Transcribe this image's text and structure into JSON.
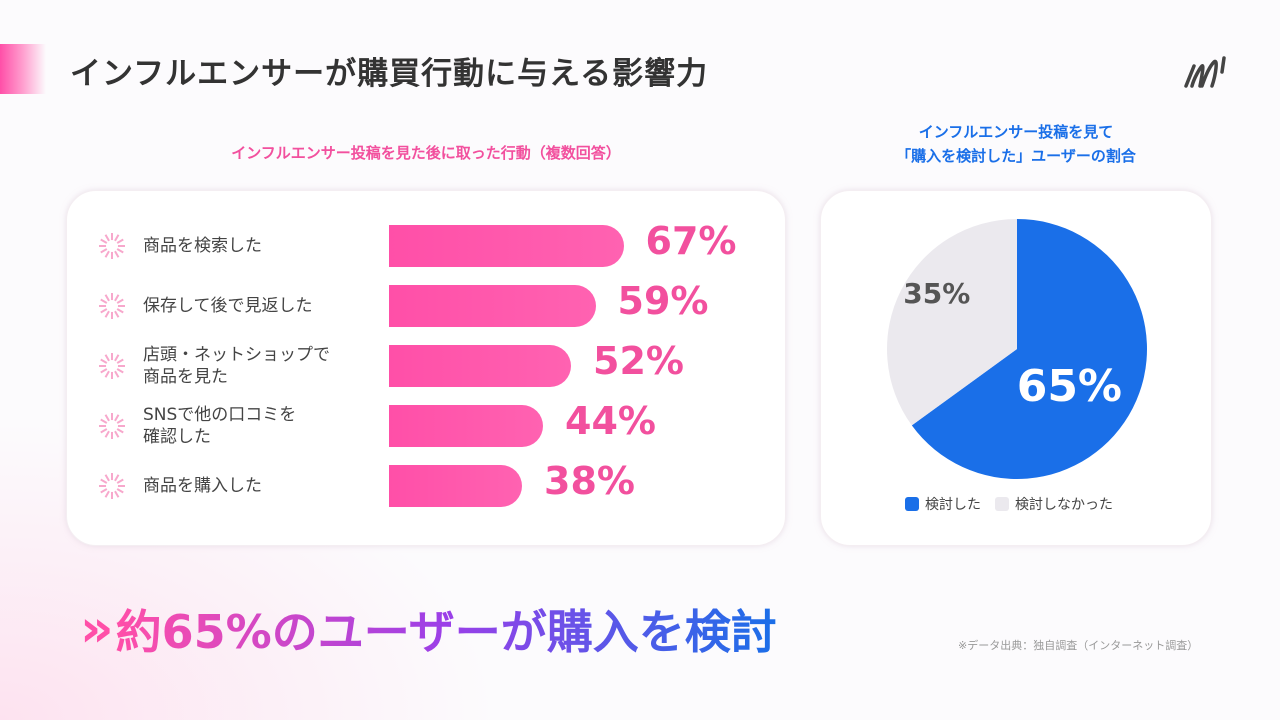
{
  "title": "インフルエンサーが購買行動に与える影響力",
  "left": {
    "subtitle": "インフルエンサー投稿を見た後に取った行動（複数回答）",
    "chart_data": {
      "type": "bar",
      "orientation": "horizontal",
      "categories": [
        "商品を検索した",
        "保存して後で見返した",
        "店頭・ネットショップで商品を見た",
        "SNSで他の口コミを確認した",
        "商品を購入した"
      ],
      "values": [
        67,
        59,
        52,
        44,
        38
      ],
      "unit": "%",
      "color": "#ff4fa8"
    },
    "labels": [
      [
        "商品を検索した"
      ],
      [
        "保存して後で見返した"
      ],
      [
        "店頭・ネットショップで",
        "商品を見た"
      ],
      [
        "SNSで他の口コミを",
        "確認した"
      ],
      [
        "商品を購入した"
      ]
    ],
    "value_labels": [
      "67%",
      "59%",
      "52%",
      "44%",
      "38%"
    ]
  },
  "right": {
    "subtitle_lines": [
      "インフルエンサー投稿を見て",
      "「購入を検討した」ユーザーの割合"
    ],
    "chart_data": {
      "type": "pie",
      "slices": [
        {
          "name": "検討した",
          "value": 65,
          "color": "#1a6fe8"
        },
        {
          "name": "検討しなかった",
          "value": 35,
          "color": "#ebe9ee"
        }
      ],
      "legend": "bottom"
    },
    "value_labels": [
      "65%",
      "35%"
    ],
    "legend": [
      "検討した",
      "検討しなかった"
    ]
  },
  "headline": "約65%のユーザーが購入を検討",
  "chevron": "»",
  "source": "※データ出典：独自調査（インターネット調査）"
}
